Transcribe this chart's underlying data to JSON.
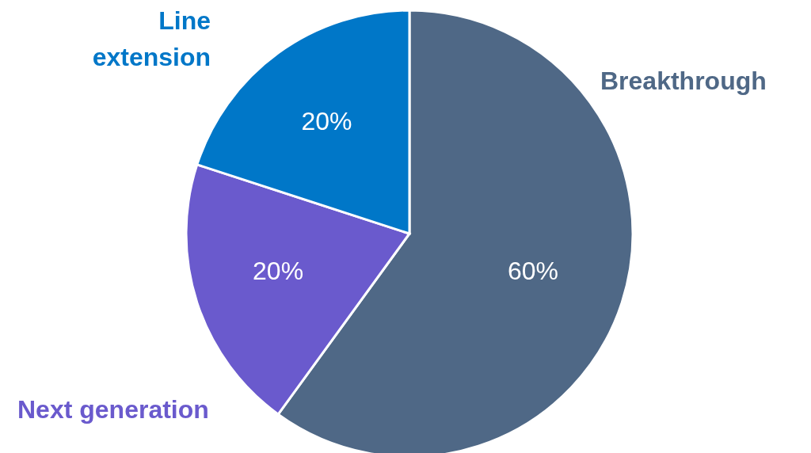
{
  "chart_data": {
    "type": "pie",
    "categories": [
      "Breakthrough",
      "Next generation",
      "Line extension"
    ],
    "values": [
      60,
      20,
      20
    ],
    "colors": [
      "#4f6886",
      "#6a5acd",
      "#0077c8"
    ],
    "value_labels": [
      "60%",
      "20%",
      "20%"
    ]
  }
}
